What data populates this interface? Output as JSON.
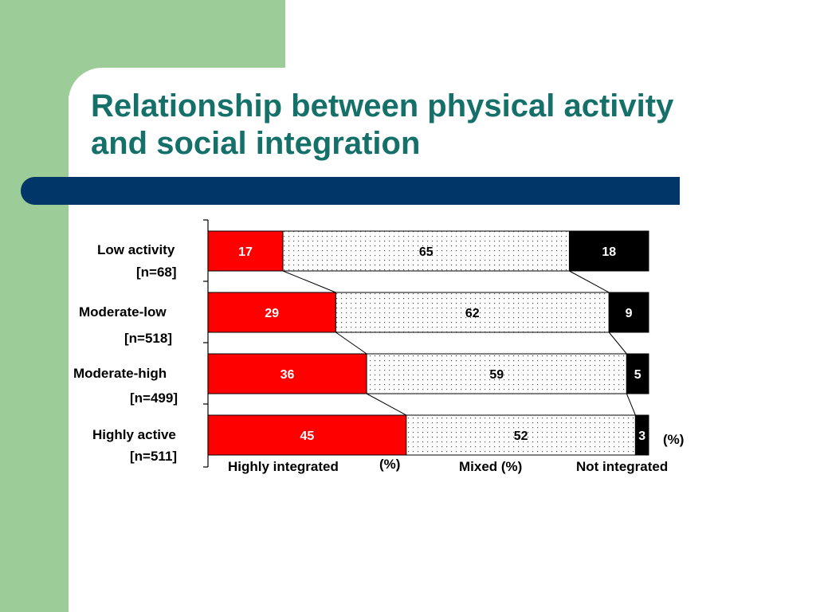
{
  "slide": {
    "title_line1": "Relationship between physical activity",
    "title_line2": "and social integration"
  },
  "colors": {
    "background_green": "#9ccc98",
    "title_teal": "#16706a",
    "banner_blue": "#003768",
    "highly_integrated": "#ff0000",
    "mixed_dotted": "#ffffff",
    "not_integrated": "#000000"
  },
  "chart_data": {
    "type": "bar",
    "orientation": "horizontal",
    "stacked": "100%",
    "categories": [
      {
        "name": "Low activity",
        "n": "[n=68]"
      },
      {
        "name": "Moderate-low",
        "n": "[n=518]"
      },
      {
        "name": "Moderate-high",
        "n": "[n=499]"
      },
      {
        "name": "Highly active",
        "n": "[n=511]"
      }
    ],
    "series": [
      {
        "name": "Highly integrated (%)",
        "values": [
          17,
          29,
          36,
          45
        ]
      },
      {
        "name": "Mixed (%)",
        "values": [
          65,
          62,
          59,
          52
        ]
      },
      {
        "name": "Not integrated (%)",
        "values": [
          18,
          9,
          5,
          3
        ]
      }
    ],
    "xlim": [
      0,
      100
    ],
    "legend_text": {
      "highly": "Highly  integrated",
      "highly_unit": "(%)",
      "mixed": "Mixed  (%)",
      "not": "Not integrated",
      "not_unit": "(%)"
    },
    "grid": false,
    "series_lines": true
  }
}
